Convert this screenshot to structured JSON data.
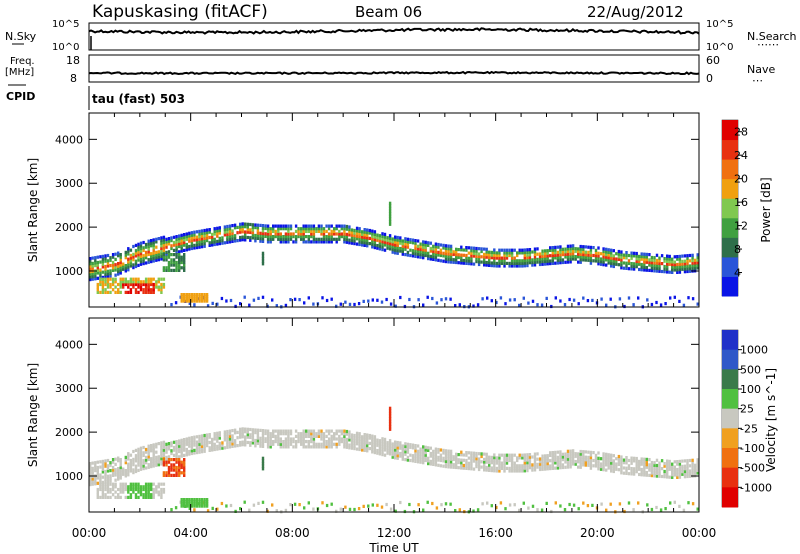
{
  "header": {
    "station": "Kapuskasing (fitACF)",
    "beam": "Beam 06",
    "date": "22/Aug/2012"
  },
  "strip1": {
    "left_label": "N.Sky",
    "right_label": "N.Search",
    "left_ticks": [
      "10^5",
      "10^0"
    ],
    "right_ticks": [
      "10^5",
      "10^0"
    ]
  },
  "strip2": {
    "left_label_top": "Freq.",
    "left_label_bottom": "[MHz]",
    "right_label": "Nave",
    "left_ticks": [
      "18",
      "8"
    ],
    "right_ticks": [
      "60",
      "0"
    ]
  },
  "cpid": {
    "label": "CPID",
    "value": "tau (fast) 503"
  },
  "colors": {
    "power_scale": [
      "#0a14e6",
      "#2a55d8",
      "#2e6f4a",
      "#40a040",
      "#80c850",
      "#f0a010",
      "#f07010",
      "#e83010",
      "#e00000"
    ],
    "velocity_scale": [
      "#2030c8",
      "#2f58c8",
      "#3a7a4a",
      "#50c040",
      "#c8c8c0",
      "#f0a020",
      "#f07010",
      "#e83010",
      "#e00000"
    ],
    "gray": "#c8c8c0"
  },
  "chart_data": [
    {
      "type": "heatmap",
      "name": "power-panel",
      "ylabel": "Slant Range [km]",
      "ylim": [
        180,
        4600
      ],
      "yticks": [
        "1000",
        "2000",
        "3000",
        "4000"
      ],
      "xlim": [
        0,
        24
      ],
      "colorbar": {
        "label": "Power [dB]",
        "ticks": [
          "4",
          "8",
          "12",
          "16",
          "20",
          "24",
          "28"
        ],
        "range": [
          0,
          30
        ]
      },
      "echo_band_center_km": [
        [
          0,
          1100
        ],
        [
          1,
          1200
        ],
        [
          2,
          1450
        ],
        [
          3,
          1600
        ],
        [
          4,
          1750
        ],
        [
          5,
          1850
        ],
        [
          6,
          1950
        ],
        [
          7,
          1900
        ],
        [
          10,
          1900
        ],
        [
          11,
          1800
        ],
        [
          12,
          1650
        ],
        [
          13,
          1550
        ],
        [
          14,
          1450
        ],
        [
          15,
          1400
        ],
        [
          16,
          1350
        ],
        [
          17,
          1350
        ],
        [
          18,
          1400
        ],
        [
          19,
          1450
        ],
        [
          20,
          1400
        ],
        [
          21,
          1300
        ],
        [
          22,
          1250
        ],
        [
          23,
          1200
        ],
        [
          24,
          1250
        ]
      ]
    },
    {
      "type": "heatmap",
      "name": "velocity-panel",
      "xlabel": "Time UT",
      "ylabel": "Slant Range [km]",
      "ylim": [
        180,
        4600
      ],
      "yticks": [
        "1000",
        "2000",
        "3000",
        "4000"
      ],
      "xlim": [
        0,
        24
      ],
      "xticks": [
        "00:00",
        "04:00",
        "08:00",
        "12:00",
        "16:00",
        "20:00",
        "00:00"
      ],
      "colorbar": {
        "label": "Velocity [m s^-1]",
        "ticks": [
          "1000",
          "500",
          "100",
          "25",
          "-25",
          "-100",
          "-500",
          "-1000"
        ]
      }
    }
  ]
}
